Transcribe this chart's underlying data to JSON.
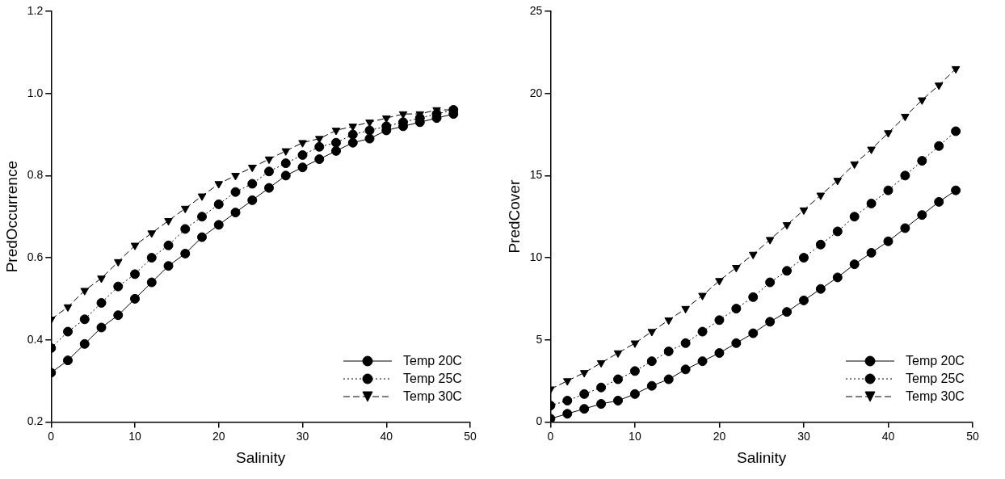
{
  "chart_data": [
    {
      "type": "line",
      "xlabel": "Salinity",
      "ylabel": "PredOccurrence",
      "x": [
        0,
        2,
        4,
        6,
        8,
        10,
        12,
        14,
        16,
        18,
        20,
        22,
        24,
        26,
        28,
        30,
        32,
        34,
        36,
        38,
        40,
        42,
        44,
        46,
        48
      ],
      "xlim": [
        0,
        50
      ],
      "xticks": [
        0,
        10,
        20,
        30,
        40,
        50
      ],
      "ylim": [
        0.2,
        1.2
      ],
      "yticks": [
        {
          "value": 0.2,
          "label": "0.2"
        },
        {
          "value": 0.4,
          "label": "0.4"
        },
        {
          "value": 0.6,
          "label": "0.6"
        },
        {
          "value": 0.8,
          "label": "0.8"
        },
        {
          "value": 1.0,
          "label": "1.0"
        },
        {
          "value": 1.2,
          "label": "1.2"
        }
      ],
      "grid": false,
      "legend": "bottom right",
      "series": [
        {
          "name": "Temp 20C",
          "color": "#000000",
          "marker": "circle",
          "line_style": "solid",
          "values": [
            0.32,
            0.35,
            0.39,
            0.43,
            0.46,
            0.5,
            0.54,
            0.58,
            0.61,
            0.65,
            0.68,
            0.71,
            0.74,
            0.77,
            0.8,
            0.82,
            0.84,
            0.86,
            0.88,
            0.89,
            0.91,
            0.92,
            0.93,
            0.94,
            0.95
          ]
        },
        {
          "name": "Temp 25C",
          "color": "#000000",
          "marker": "circle",
          "line_style": "dotted",
          "values": [
            0.38,
            0.42,
            0.45,
            0.49,
            0.53,
            0.56,
            0.6,
            0.63,
            0.67,
            0.7,
            0.73,
            0.76,
            0.78,
            0.81,
            0.83,
            0.85,
            0.87,
            0.88,
            0.9,
            0.91,
            0.92,
            0.93,
            0.94,
            0.95,
            0.96
          ]
        },
        {
          "name": "Temp 30C",
          "color": "#000000",
          "marker": "triangle",
          "line_style": "dashed",
          "values": [
            0.45,
            0.48,
            0.52,
            0.55,
            0.59,
            0.63,
            0.66,
            0.69,
            0.72,
            0.75,
            0.78,
            0.8,
            0.82,
            0.84,
            0.86,
            0.88,
            0.89,
            0.91,
            0.92,
            0.93,
            0.94,
            0.95,
            0.95,
            0.96,
            0.96
          ]
        }
      ]
    },
    {
      "type": "line",
      "xlabel": "Salinity",
      "ylabel": "PredCover",
      "x": [
        0,
        2,
        4,
        6,
        8,
        10,
        12,
        14,
        16,
        18,
        20,
        22,
        24,
        26,
        28,
        30,
        32,
        34,
        36,
        38,
        40,
        42,
        44,
        46,
        48
      ],
      "xlim": [
        0,
        50
      ],
      "xticks": [
        0,
        10,
        20,
        30,
        40,
        50
      ],
      "ylim": [
        0,
        25
      ],
      "yticks": [
        0,
        5,
        10,
        15,
        20,
        25
      ],
      "grid": false,
      "legend": "bottom right",
      "series": [
        {
          "name": "Temp 20C",
          "color": "#000000",
          "marker": "circle",
          "line_style": "solid",
          "values": [
            0.2,
            0.5,
            0.8,
            1.1,
            1.3,
            1.7,
            2.2,
            2.6,
            3.2,
            3.7,
            4.2,
            4.8,
            5.4,
            6.1,
            6.7,
            7.4,
            8.1,
            8.8,
            9.6,
            10.3,
            11.0,
            11.8,
            12.6,
            13.4,
            14.1
          ]
        },
        {
          "name": "Temp 25C",
          "color": "#000000",
          "marker": "circle",
          "line_style": "dotted",
          "values": [
            1.0,
            1.3,
            1.7,
            2.1,
            2.6,
            3.1,
            3.7,
            4.3,
            4.8,
            5.5,
            6.2,
            6.9,
            7.6,
            8.5,
            9.2,
            10.0,
            10.8,
            11.6,
            12.5,
            13.3,
            14.1,
            15.0,
            15.9,
            16.8,
            17.7
          ]
        },
        {
          "name": "Temp 30C",
          "color": "#000000",
          "marker": "triangle",
          "line_style": "dashed",
          "values": [
            2.0,
            2.5,
            3.0,
            3.6,
            4.2,
            4.8,
            5.5,
            6.2,
            6.9,
            7.7,
            8.6,
            9.4,
            10.2,
            11.1,
            12.0,
            12.9,
            13.8,
            14.7,
            15.7,
            16.6,
            17.6,
            18.6,
            19.6,
            20.5,
            21.5
          ]
        }
      ]
    }
  ]
}
